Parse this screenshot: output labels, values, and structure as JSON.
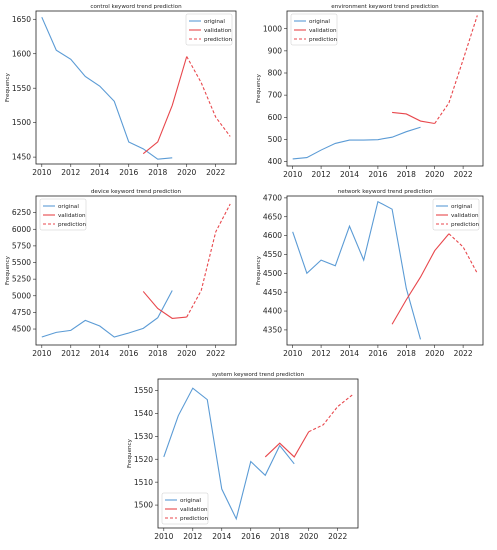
{
  "chart_data": [
    {
      "type": "line",
      "title": "control keyword trend prediction",
      "ylabel": "Frequency",
      "xlim": [
        2009.6,
        2023.4
      ],
      "ylim": [
        1440,
        1662
      ],
      "xticks": [
        2010,
        2012,
        2014,
        2016,
        2018,
        2020,
        2022
      ],
      "yticks": [
        1450,
        1500,
        1550,
        1600,
        1650
      ],
      "legend": "top-right",
      "series": [
        {
          "name": "original",
          "color": "#5b9bd5",
          "style": "solid",
          "x": [
            2010,
            2011,
            2012,
            2013,
            2014,
            2015,
            2016,
            2017,
            2018,
            2019
          ],
          "y": [
            1653,
            1605,
            1592,
            1567,
            1553,
            1531,
            1472,
            1462,
            1447,
            1449
          ]
        },
        {
          "name": "validation",
          "color": "#e8474c",
          "style": "solid",
          "x": [
            2017,
            2018,
            2019,
            2020
          ],
          "y": [
            1455,
            1472,
            1525,
            1596
          ]
        },
        {
          "name": "prediction",
          "color": "#e8474c",
          "style": "dashed",
          "x": [
            2020,
            2021,
            2022,
            2023
          ],
          "y": [
            1596,
            1558,
            1508,
            1480
          ]
        }
      ]
    },
    {
      "type": "line",
      "title": "environment keyword trend prediction",
      "ylabel": "Frequency",
      "xlim": [
        2009.6,
        2023.4
      ],
      "ylim": [
        380,
        1080
      ],
      "xticks": [
        2010,
        2012,
        2014,
        2016,
        2018,
        2020,
        2022
      ],
      "yticks": [
        400,
        500,
        600,
        700,
        800,
        900,
        1000
      ],
      "legend": "top-left",
      "series": [
        {
          "name": "original",
          "color": "#5b9bd5",
          "style": "solid",
          "x": [
            2010,
            2011,
            2012,
            2013,
            2014,
            2015,
            2016,
            2017,
            2018,
            2019
          ],
          "y": [
            412,
            418,
            452,
            482,
            497,
            497,
            499,
            510,
            535,
            555
          ]
        },
        {
          "name": "validation",
          "color": "#e8474c",
          "style": "solid",
          "x": [
            2017,
            2018,
            2019,
            2020
          ],
          "y": [
            622,
            615,
            583,
            572
          ]
        },
        {
          "name": "prediction",
          "color": "#e8474c",
          "style": "dashed",
          "x": [
            2020,
            2021,
            2022,
            2023
          ],
          "y": [
            572,
            665,
            860,
            1060
          ]
        }
      ]
    },
    {
      "type": "line",
      "title": "device keyword trend prediction",
      "ylabel": "Frequency",
      "xlim": [
        2009.6,
        2023.4
      ],
      "ylim": [
        4260,
        6500
      ],
      "xticks": [
        2010,
        2012,
        2014,
        2016,
        2018,
        2020,
        2022
      ],
      "yticks": [
        4500,
        4750,
        5000,
        5250,
        5500,
        5750,
        6000,
        6250
      ],
      "legend": "top-left",
      "series": [
        {
          "name": "original",
          "color": "#5b9bd5",
          "style": "solid",
          "x": [
            2010,
            2011,
            2012,
            2013,
            2014,
            2015,
            2016,
            2017,
            2018,
            2019
          ],
          "y": [
            4380,
            4450,
            4480,
            4630,
            4545,
            4380,
            4440,
            4510,
            4670,
            5080
          ]
        },
        {
          "name": "validation",
          "color": "#e8474c",
          "style": "solid",
          "x": [
            2017,
            2018,
            2019,
            2020
          ],
          "y": [
            5065,
            4810,
            4660,
            4680
          ]
        },
        {
          "name": "prediction",
          "color": "#e8474c",
          "style": "dashed",
          "x": [
            2020,
            2021,
            2022,
            2023
          ],
          "y": [
            4680,
            5080,
            5960,
            6380
          ]
        }
      ]
    },
    {
      "type": "line",
      "title": "network keyword trend prediction",
      "ylabel": "Frequency",
      "xlim": [
        2009.6,
        2023.4
      ],
      "ylim": [
        4310,
        4705
      ],
      "xticks": [
        2010,
        2012,
        2014,
        2016,
        2018,
        2020,
        2022
      ],
      "yticks": [
        4350,
        4400,
        4450,
        4500,
        4550,
        4600,
        4650,
        4700
      ],
      "legend": "top-right",
      "series": [
        {
          "name": "original",
          "color": "#5b9bd5",
          "style": "solid",
          "x": [
            2010,
            2011,
            2012,
            2013,
            2014,
            2015,
            2016,
            2017,
            2018,
            2019
          ],
          "y": [
            4610,
            4500,
            4535,
            4520,
            4625,
            4535,
            4690,
            4670,
            4460,
            4325
          ]
        },
        {
          "name": "validation",
          "color": "#e8474c",
          "style": "solid",
          "x": [
            2017,
            2018,
            2019,
            2020,
            2021
          ],
          "y": [
            4365,
            4430,
            4490,
            4560,
            4605
          ]
        },
        {
          "name": "prediction",
          "color": "#e8474c",
          "style": "dashed",
          "x": [
            2021,
            2022,
            2023
          ],
          "y": [
            4605,
            4570,
            4500
          ]
        }
      ]
    },
    {
      "type": "line",
      "title": "system keyword trend prediction",
      "ylabel": "Frequency",
      "xlim": [
        2009.6,
        2023.4
      ],
      "ylim": [
        1490,
        1555
      ],
      "xticks": [
        2010,
        2012,
        2014,
        2016,
        2018,
        2020,
        2022
      ],
      "yticks": [
        1500,
        1510,
        1520,
        1530,
        1540,
        1550
      ],
      "legend": "bottom-left",
      "series": [
        {
          "name": "original",
          "color": "#5b9bd5",
          "style": "solid",
          "x": [
            2010,
            2011,
            2012,
            2013,
            2014,
            2015,
            2016,
            2017,
            2018,
            2019
          ],
          "y": [
            1521,
            1539,
            1551,
            1546,
            1507,
            1494,
            1519,
            1513,
            1526,
            1518
          ]
        },
        {
          "name": "validation",
          "color": "#e8474c",
          "style": "solid",
          "x": [
            2017,
            2018,
            2019,
            2020
          ],
          "y": [
            1521,
            1527,
            1521,
            1532
          ]
        },
        {
          "name": "prediction",
          "color": "#e8474c",
          "style": "dashed",
          "x": [
            2020,
            2021,
            2022,
            2023
          ],
          "y": [
            1532,
            1535,
            1543,
            1548
          ]
        }
      ]
    }
  ]
}
